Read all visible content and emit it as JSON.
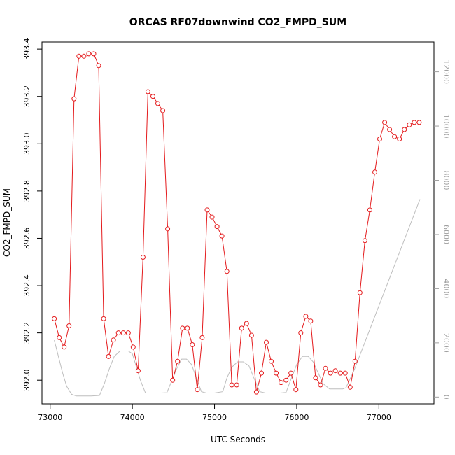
{
  "chart_data": {
    "type": "line",
    "title": "ORCAS RF07downwind CO2_FMPD_SUM",
    "xlabel": "UTC Seconds",
    "ylabel": "CO2_FMPD_SUM",
    "xlim": [
      72900,
      77670
    ],
    "ylim": [
      391.9,
      393.43
    ],
    "y2lim": [
      -250,
      13100
    ],
    "x_ticks": [
      73000,
      74000,
      75000,
      76000,
      77000
    ],
    "y_ticks": [
      392.0,
      392.2,
      392.4,
      392.6,
      392.8,
      393.0,
      393.2,
      393.4
    ],
    "y2_ticks": [
      0,
      2000,
      4000,
      6000,
      8000,
      10000,
      12000
    ],
    "grid": false,
    "colors": {
      "co2": "#e41a1c",
      "altitude": "#bebebe",
      "axis": "#000000",
      "axis_right": "#a0a0a0"
    },
    "series": [
      {
        "axis": "left",
        "style": "line+points",
        "x": [
          73050,
          73110,
          73170,
          73230,
          73290,
          73350,
          73410,
          73470,
          73530,
          73590,
          73650,
          73710,
          73770,
          73830,
          73890,
          73950,
          74010,
          74070,
          74130,
          74190,
          74250,
          74310,
          74370,
          74430,
          74490,
          74550,
          74610,
          74670,
          74730,
          74790,
          74850,
          74910,
          74970,
          75030,
          75090,
          75150,
          75210,
          75270,
          75330,
          75390,
          75450,
          75510,
          75570,
          75630,
          75690,
          75750,
          75810,
          75870,
          75930,
          75990,
          76050,
          76110,
          76170,
          76230,
          76290,
          76350,
          76410,
          76470,
          76530,
          76590,
          76650,
          76710,
          76770,
          76830,
          76890,
          76950,
          77010,
          77070,
          77130,
          77190,
          77250,
          77310,
          77370,
          77430,
          77490
        ],
        "values": [
          392.26,
          392.18,
          392.14,
          392.23,
          393.19,
          393.37,
          393.37,
          393.38,
          393.38,
          393.33,
          392.26,
          392.1,
          392.17,
          392.2,
          392.2,
          392.2,
          392.14,
          392.04,
          392.52,
          393.22,
          393.2,
          393.17,
          393.14,
          392.64,
          392.0,
          392.08,
          392.22,
          392.22,
          392.15,
          391.96,
          392.18,
          392.72,
          392.69,
          392.65,
          392.61,
          392.46,
          391.98,
          391.98,
          392.22,
          392.24,
          392.19,
          391.95,
          392.03,
          392.16,
          392.08,
          392.03,
          391.99,
          392.0,
          392.03,
          391.96,
          392.2,
          392.27,
          392.25,
          392.01,
          391.98,
          392.05,
          392.03,
          392.04,
          392.03,
          392.03,
          391.97,
          392.08,
          392.37,
          392.59,
          392.72,
          392.88,
          393.02,
          393.09,
          393.06,
          393.03,
          393.02,
          393.06,
          393.08,
          393.09,
          393.09
        ]
      },
      {
        "axis": "right",
        "style": "line",
        "x": [
          73050,
          73100,
          73150,
          73200,
          73260,
          73320,
          73400,
          73500,
          73600,
          73660,
          73720,
          73780,
          73850,
          73950,
          74000,
          74060,
          74100,
          74160,
          74250,
          74350,
          74420,
          74480,
          74540,
          74600,
          74660,
          74720,
          74780,
          74840,
          74900,
          75000,
          75100,
          75150,
          75210,
          75280,
          75350,
          75420,
          75480,
          75550,
          75620,
          75700,
          75800,
          75870,
          75930,
          76000,
          76070,
          76140,
          76200,
          76260,
          76320,
          76400,
          76480,
          76560,
          76600,
          76700,
          77500
        ],
        "values": [
          2100,
          1500,
          900,
          400,
          100,
          40,
          40,
          40,
          60,
          500,
          1050,
          1500,
          1700,
          1700,
          1600,
          1000,
          600,
          150,
          150,
          150,
          160,
          600,
          1050,
          1400,
          1400,
          1200,
          700,
          200,
          150,
          150,
          200,
          700,
          1100,
          1300,
          1300,
          1150,
          700,
          200,
          150,
          150,
          150,
          170,
          650,
          1200,
          1500,
          1500,
          1300,
          900,
          500,
          300,
          300,
          300,
          350,
          1000,
          7300
        ]
      }
    ]
  }
}
